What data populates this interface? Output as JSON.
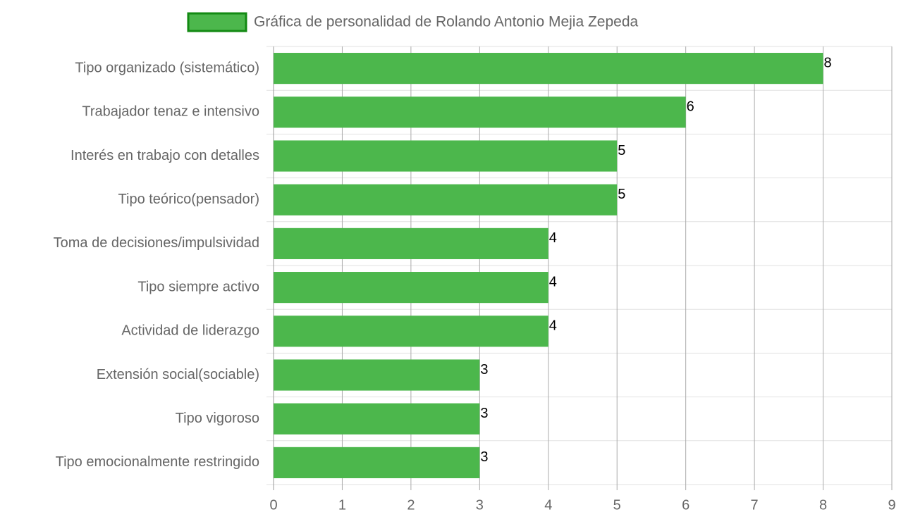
{
  "chart_data": {
    "type": "bar",
    "orientation": "horizontal",
    "categories": [
      "Tipo organizado (sistemático)",
      "Trabajador tenaz e intensivo",
      "Interés en trabajo con detalles",
      "Tipo teórico(pensador)",
      "Toma de decisiones/impulsividad",
      "Tipo siempre activo",
      "Actividad de liderazgo",
      "Extensión social(sociable)",
      "Tipo vigoroso",
      "Tipo emocionalmente restringido"
    ],
    "series": [
      {
        "name": "Gráfica de personalidad de Rolando Antonio Mejia Zepeda",
        "color": "#4cb74c",
        "border_color": "#138a13",
        "values": [
          8,
          6,
          5,
          5,
          4,
          4,
          4,
          3,
          3,
          3
        ]
      }
    ],
    "xlim": [
      0,
      9
    ],
    "xticks": [
      0,
      1,
      2,
      3,
      4,
      5,
      6,
      7,
      8,
      9
    ],
    "grid": true,
    "legend": "top"
  }
}
